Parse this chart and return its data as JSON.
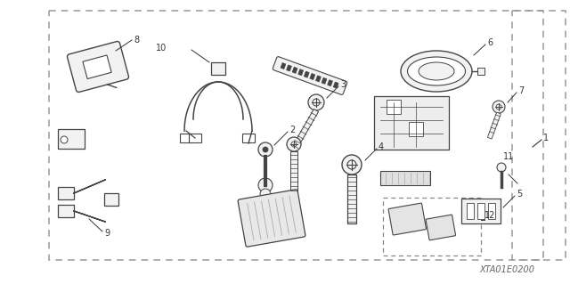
{
  "bg_color": "#ffffff",
  "lc": "#444444",
  "fc": "#f2f2f2",
  "tc": "#333333",
  "diagram_code": "XTA01E0200",
  "fig_w": 6.4,
  "fig_h": 3.19,
  "dpi": 100,
  "border": [
    55,
    18,
    600,
    288
  ],
  "outer_border": [
    10,
    5,
    635,
    308
  ]
}
